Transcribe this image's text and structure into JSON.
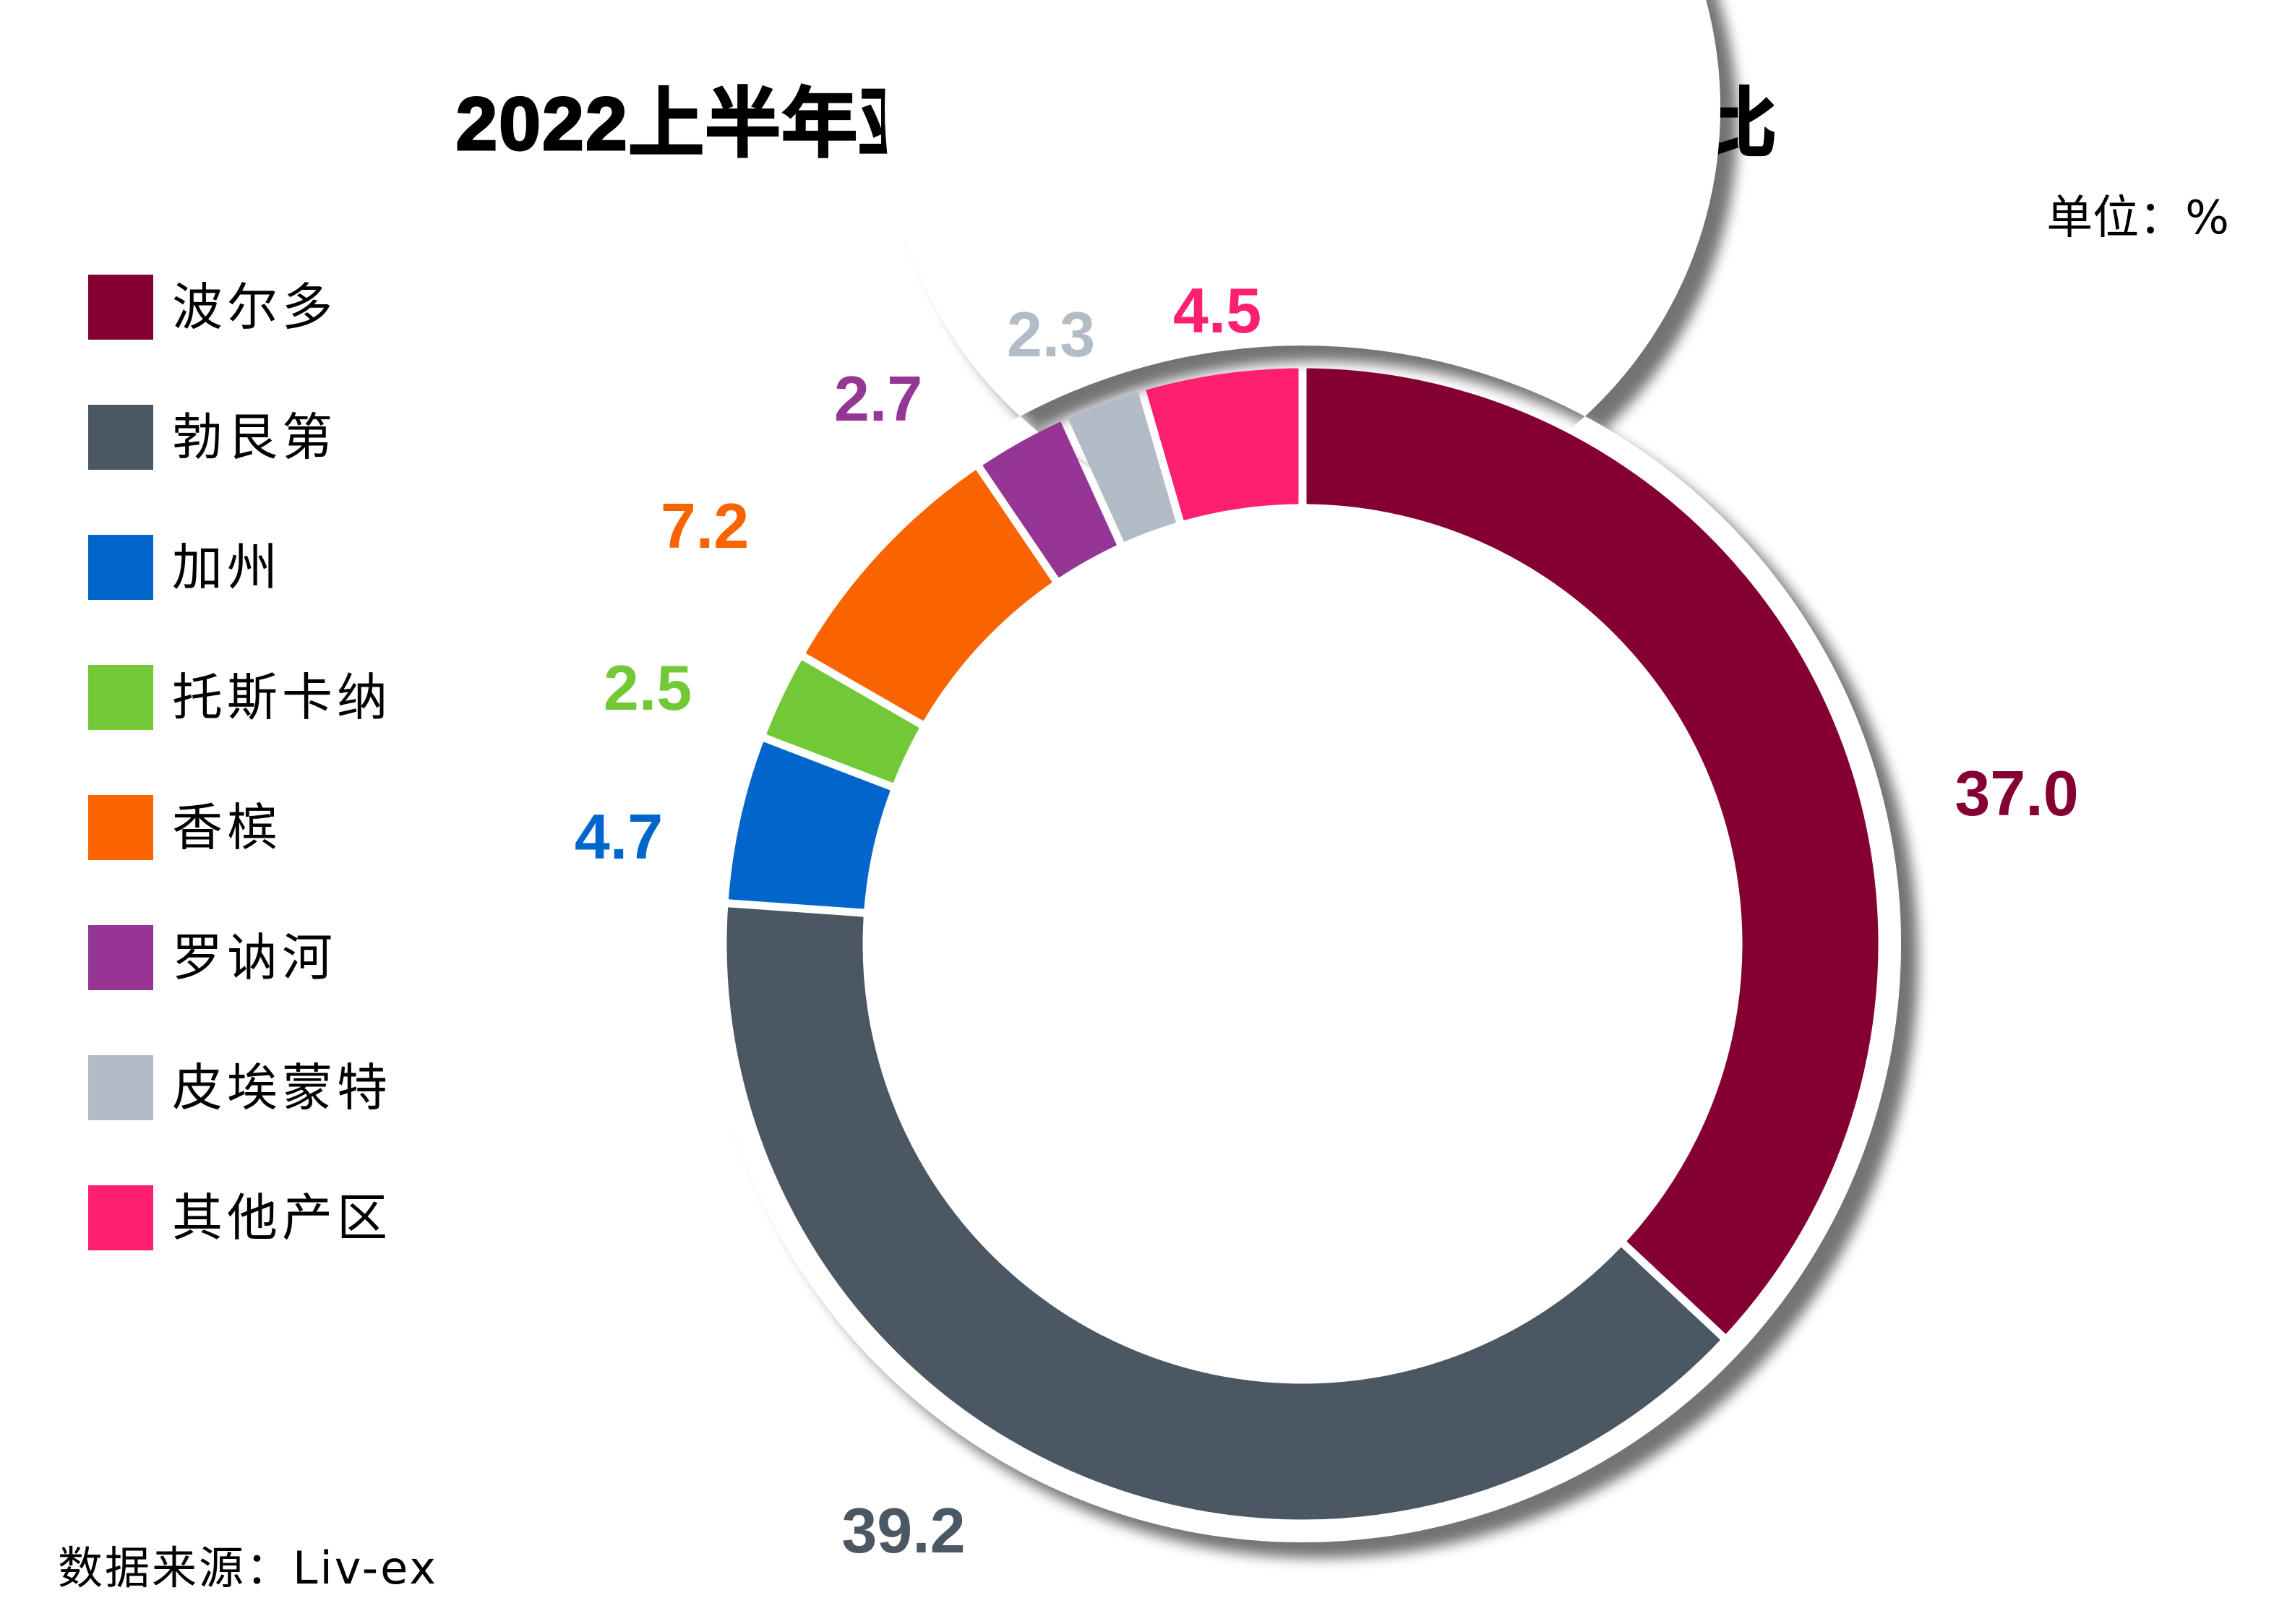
{
  "chart_data": {
    "type": "pie",
    "variant": "donut",
    "title": "2022上半年亚洲市场各产区交易额占比",
    "unit_label": "单位：%",
    "source": "数据来源：Liv-ex",
    "legend_position": "left",
    "start": "top",
    "direction": "clockwise",
    "slices": [
      {
        "name": "波尔多",
        "value": 37.0,
        "label": "37.0",
        "color": "#850032"
      },
      {
        "name": "勃艮第",
        "value": 39.2,
        "label": "39.2",
        "color": "#4B5762"
      },
      {
        "name": "加州",
        "value": 4.7,
        "label": "4.7",
        "color": "#0066CC"
      },
      {
        "name": "托斯卡纳",
        "value": 2.5,
        "label": "2.5",
        "color": "#72C837"
      },
      {
        "name": "香槟",
        "value": 7.2,
        "label": "7.2",
        "color": "#FA6400"
      },
      {
        "name": "罗讷河",
        "value": 2.7,
        "label": "2.7",
        "color": "#953594"
      },
      {
        "name": "皮埃蒙特",
        "value": 2.3,
        "label": "2.3",
        "color": "#B1BCC6"
      },
      {
        "name": "其他产区",
        "value": 4.5,
        "label": "4.5",
        "color": "#FF1F70"
      }
    ]
  }
}
